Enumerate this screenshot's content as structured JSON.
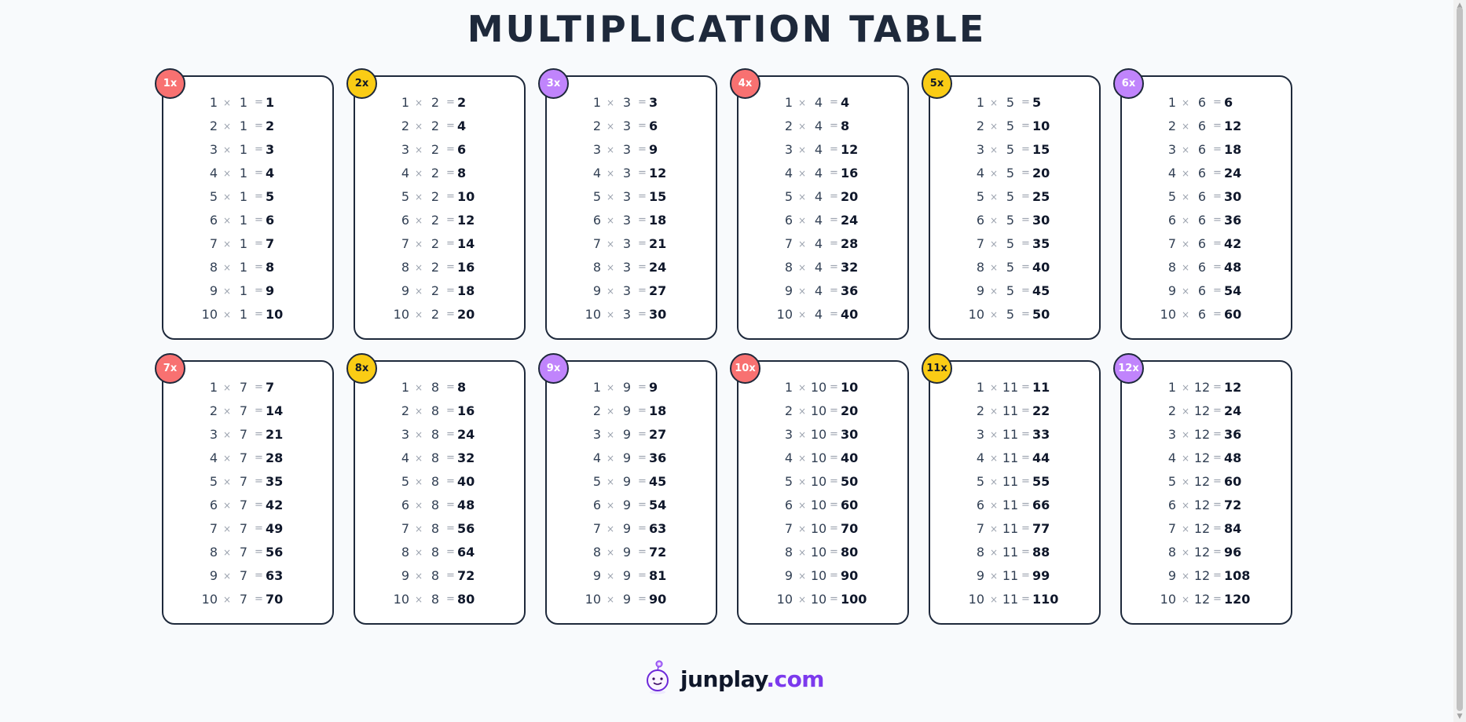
{
  "page": {
    "title": "MULTIPLICATION TABLE"
  },
  "symbols": {
    "times": "×",
    "equals": "="
  },
  "colors": {
    "red": "#f87171",
    "yellow": "#facc15",
    "purple": "#c084fc",
    "border": "#1e293b",
    "brand_dotcom": "#7c3aed"
  },
  "tables": [
    {
      "label": "1x",
      "factor": 1,
      "color": "red",
      "rows": [
        [
          1,
          1,
          1
        ],
        [
          2,
          1,
          2
        ],
        [
          3,
          1,
          3
        ],
        [
          4,
          1,
          4
        ],
        [
          5,
          1,
          5
        ],
        [
          6,
          1,
          6
        ],
        [
          7,
          1,
          7
        ],
        [
          8,
          1,
          8
        ],
        [
          9,
          1,
          9
        ],
        [
          10,
          1,
          10
        ]
      ]
    },
    {
      "label": "2x",
      "factor": 2,
      "color": "yellow",
      "rows": [
        [
          1,
          2,
          2
        ],
        [
          2,
          2,
          4
        ],
        [
          3,
          2,
          6
        ],
        [
          4,
          2,
          8
        ],
        [
          5,
          2,
          10
        ],
        [
          6,
          2,
          12
        ],
        [
          7,
          2,
          14
        ],
        [
          8,
          2,
          16
        ],
        [
          9,
          2,
          18
        ],
        [
          10,
          2,
          20
        ]
      ]
    },
    {
      "label": "3x",
      "factor": 3,
      "color": "purple",
      "rows": [
        [
          1,
          3,
          3
        ],
        [
          2,
          3,
          6
        ],
        [
          3,
          3,
          9
        ],
        [
          4,
          3,
          12
        ],
        [
          5,
          3,
          15
        ],
        [
          6,
          3,
          18
        ],
        [
          7,
          3,
          21
        ],
        [
          8,
          3,
          24
        ],
        [
          9,
          3,
          27
        ],
        [
          10,
          3,
          30
        ]
      ]
    },
    {
      "label": "4x",
      "factor": 4,
      "color": "red",
      "rows": [
        [
          1,
          4,
          4
        ],
        [
          2,
          4,
          8
        ],
        [
          3,
          4,
          12
        ],
        [
          4,
          4,
          16
        ],
        [
          5,
          4,
          20
        ],
        [
          6,
          4,
          24
        ],
        [
          7,
          4,
          28
        ],
        [
          8,
          4,
          32
        ],
        [
          9,
          4,
          36
        ],
        [
          10,
          4,
          40
        ]
      ]
    },
    {
      "label": "5x",
      "factor": 5,
      "color": "yellow",
      "rows": [
        [
          1,
          5,
          5
        ],
        [
          2,
          5,
          10
        ],
        [
          3,
          5,
          15
        ],
        [
          4,
          5,
          20
        ],
        [
          5,
          5,
          25
        ],
        [
          6,
          5,
          30
        ],
        [
          7,
          5,
          35
        ],
        [
          8,
          5,
          40
        ],
        [
          9,
          5,
          45
        ],
        [
          10,
          5,
          50
        ]
      ]
    },
    {
      "label": "6x",
      "factor": 6,
      "color": "purple",
      "rows": [
        [
          1,
          6,
          6
        ],
        [
          2,
          6,
          12
        ],
        [
          3,
          6,
          18
        ],
        [
          4,
          6,
          24
        ],
        [
          5,
          6,
          30
        ],
        [
          6,
          6,
          36
        ],
        [
          7,
          6,
          42
        ],
        [
          8,
          6,
          48
        ],
        [
          9,
          6,
          54
        ],
        [
          10,
          6,
          60
        ]
      ]
    },
    {
      "label": "7x",
      "factor": 7,
      "color": "red",
      "rows": [
        [
          1,
          7,
          7
        ],
        [
          2,
          7,
          14
        ],
        [
          3,
          7,
          21
        ],
        [
          4,
          7,
          28
        ],
        [
          5,
          7,
          35
        ],
        [
          6,
          7,
          42
        ],
        [
          7,
          7,
          49
        ],
        [
          8,
          7,
          56
        ],
        [
          9,
          7,
          63
        ],
        [
          10,
          7,
          70
        ]
      ]
    },
    {
      "label": "8x",
      "factor": 8,
      "color": "yellow",
      "rows": [
        [
          1,
          8,
          8
        ],
        [
          2,
          8,
          16
        ],
        [
          3,
          8,
          24
        ],
        [
          4,
          8,
          32
        ],
        [
          5,
          8,
          40
        ],
        [
          6,
          8,
          48
        ],
        [
          7,
          8,
          56
        ],
        [
          8,
          8,
          64
        ],
        [
          9,
          8,
          72
        ],
        [
          10,
          8,
          80
        ]
      ]
    },
    {
      "label": "9x",
      "factor": 9,
      "color": "purple",
      "rows": [
        [
          1,
          9,
          9
        ],
        [
          2,
          9,
          18
        ],
        [
          3,
          9,
          27
        ],
        [
          4,
          9,
          36
        ],
        [
          5,
          9,
          45
        ],
        [
          6,
          9,
          54
        ],
        [
          7,
          9,
          63
        ],
        [
          8,
          9,
          72
        ],
        [
          9,
          9,
          81
        ],
        [
          10,
          9,
          90
        ]
      ]
    },
    {
      "label": "10x",
      "factor": 10,
      "color": "red",
      "rows": [
        [
          1,
          10,
          10
        ],
        [
          2,
          10,
          20
        ],
        [
          3,
          10,
          30
        ],
        [
          4,
          10,
          40
        ],
        [
          5,
          10,
          50
        ],
        [
          6,
          10,
          60
        ],
        [
          7,
          10,
          70
        ],
        [
          8,
          10,
          80
        ],
        [
          9,
          10,
          90
        ],
        [
          10,
          10,
          100
        ]
      ]
    },
    {
      "label": "11x",
      "factor": 11,
      "color": "yellow",
      "rows": [
        [
          1,
          11,
          11
        ],
        [
          2,
          11,
          22
        ],
        [
          3,
          11,
          33
        ],
        [
          4,
          11,
          44
        ],
        [
          5,
          11,
          55
        ],
        [
          6,
          11,
          66
        ],
        [
          7,
          11,
          77
        ],
        [
          8,
          11,
          88
        ],
        [
          9,
          11,
          99
        ],
        [
          10,
          11,
          110
        ]
      ]
    },
    {
      "label": "12x",
      "factor": 12,
      "color": "purple",
      "rows": [
        [
          1,
          12,
          12
        ],
        [
          2,
          12,
          24
        ],
        [
          3,
          12,
          36
        ],
        [
          4,
          12,
          48
        ],
        [
          5,
          12,
          60
        ],
        [
          6,
          12,
          72
        ],
        [
          7,
          12,
          84
        ],
        [
          8,
          12,
          96
        ],
        [
          9,
          12,
          108
        ],
        [
          10,
          12,
          120
        ]
      ]
    }
  ],
  "footer": {
    "logo_icon": "robot-mascot-icon",
    "brand_name": "junplay",
    "brand_tld": ".com"
  },
  "scrollbar": {
    "up_icon": "chevron-up-icon",
    "down_icon": "chevron-down-icon"
  }
}
